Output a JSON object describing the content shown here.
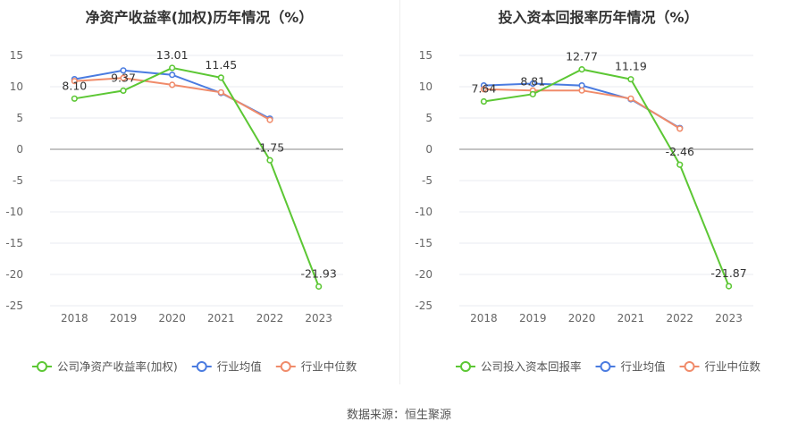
{
  "source_text": "数据来源：恒生聚源",
  "chart_data": [
    {
      "type": "line",
      "title": "净资产收益率(加权)历年情况（%）",
      "x": [
        "2018",
        "2019",
        "2020",
        "2021",
        "2022",
        "2023"
      ],
      "ylim": [
        -25,
        15
      ],
      "yticks": [
        15,
        10,
        5,
        0,
        -5,
        -10,
        -15,
        -20,
        -25
      ],
      "grid": true,
      "legend_position": "bottom-left",
      "series": [
        {
          "name": "公司净资产收益率(加权)",
          "color": "#5cc734",
          "values": [
            8.1,
            9.37,
            13.01,
            11.45,
            -1.75,
            -21.93
          ],
          "labels": [
            "8.10",
            "9.37",
            "13.01",
            "11.45",
            "-1.75",
            "-21.93"
          ]
        },
        {
          "name": "行业均值",
          "color": "#4a7be0",
          "values": [
            11.2,
            12.6,
            11.9,
            9.0,
            4.9,
            null
          ]
        },
        {
          "name": "行业中位数",
          "color": "#f08b6a",
          "values": [
            10.9,
            11.4,
            10.3,
            9.1,
            4.7,
            null
          ]
        }
      ]
    },
    {
      "type": "line",
      "title": "投入资本回报率历年情况（%）",
      "x": [
        "2018",
        "2019",
        "2020",
        "2021",
        "2022",
        "2023"
      ],
      "ylim": [
        -25,
        15
      ],
      "yticks": [
        15,
        10,
        5,
        0,
        -5,
        -10,
        -15,
        -20,
        -25
      ],
      "grid": true,
      "legend_position": "bottom-left",
      "series": [
        {
          "name": "公司投入资本回报率",
          "color": "#5cc734",
          "values": [
            7.64,
            8.81,
            12.77,
            11.19,
            -2.46,
            -21.87
          ],
          "labels": [
            "7.64",
            "8.81",
            "12.77",
            "11.19",
            "-2.46",
            "-21.87"
          ]
        },
        {
          "name": "行业均值",
          "color": "#4a7be0",
          "values": [
            10.2,
            10.5,
            10.2,
            8.0,
            3.4,
            null
          ]
        },
        {
          "name": "行业中位数",
          "color": "#f08b6a",
          "values": [
            9.6,
            9.4,
            9.4,
            8.1,
            3.3,
            null
          ]
        }
      ]
    }
  ]
}
